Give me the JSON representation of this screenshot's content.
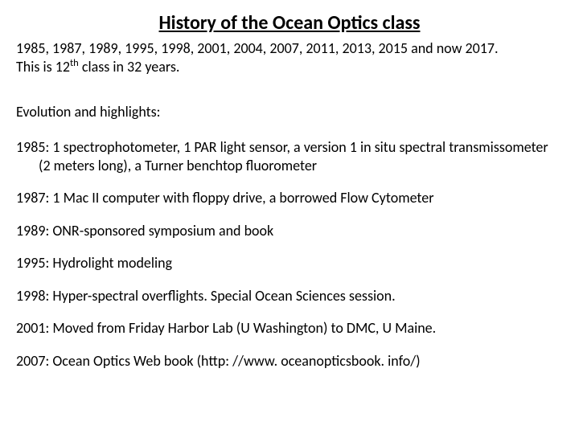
{
  "title": "History of the Ocean Optics class",
  "intro_line1": "1985, 1987, 1989, 1995, 1998, 2001, 2004, 2007, 2011, 2013, 2015 and now 2017.",
  "intro_line2_pre": "This is 12",
  "intro_line2_sup": "th",
  "intro_line2_post": " class in 32 years.",
  "section_label": "Evolution and highlights:",
  "entries": [
    "1985: 1 spectrophotometer, 1 PAR light sensor, a version 1 in situ spectral transmissometer (2 meters long), a Turner benchtop fluorometer",
    "1987:  1 Mac II computer with floppy drive, a borrowed Flow Cytometer",
    "1989:  ONR-sponsored symposium and book",
    "1995:  Hydrolight modeling",
    "1998:  Hyper-spectral overflights. Special Ocean Sciences session.",
    "2001:  Moved from Friday Harbor Lab (U Washington) to DMC, U Maine.",
    "2007: Ocean Optics Web book (http: //www. oceanopticsbook. info/)"
  ],
  "style": {
    "background_color": "#ffffff",
    "text_color": "#000000",
    "title_fontsize": 24,
    "body_fontsize": 18,
    "font_family": "Calibri"
  }
}
